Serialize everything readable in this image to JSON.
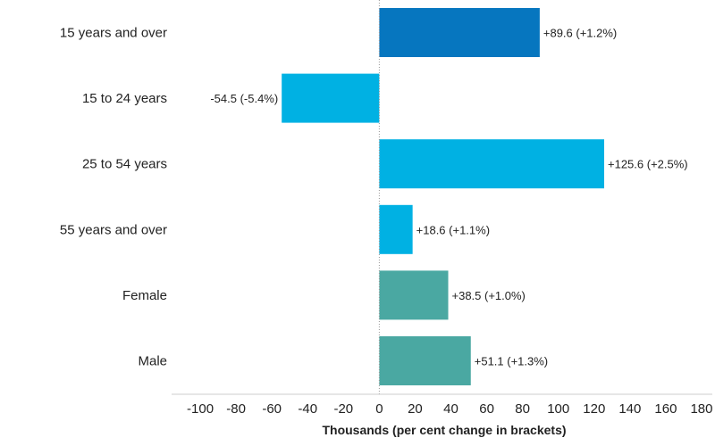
{
  "chart_data": {
    "type": "bar",
    "orientation": "horizontal",
    "categories": [
      "15 years and over",
      "15 to 24 years",
      "25 to 54 years",
      "55 years and over",
      "Female",
      "Male"
    ],
    "values": [
      89.6,
      -54.5,
      125.6,
      18.6,
      38.5,
      51.1
    ],
    "data_labels": [
      "+89.6 (+1.2%)",
      "-54.5 (-5.4%)",
      "+125.6 (+2.5%)",
      "+18.6 (+1.1%)",
      "+38.5 (+1.0%)",
      "+51.1 (+1.3%)"
    ],
    "colors": [
      "#0676BF",
      "#00B1E3",
      "#00B1E3",
      "#00B1E3",
      "#4AA8A2",
      "#4AA8A2"
    ],
    "xticks": [
      -100,
      -80,
      -60,
      -40,
      -20,
      0,
      20,
      40,
      60,
      80,
      100,
      120,
      140,
      160,
      180
    ],
    "xlim": [
      -116,
      186
    ],
    "xlabel": "Thousands (per cent change in brackets)",
    "title": "",
    "grid": false,
    "zero_line": "dotted"
  }
}
